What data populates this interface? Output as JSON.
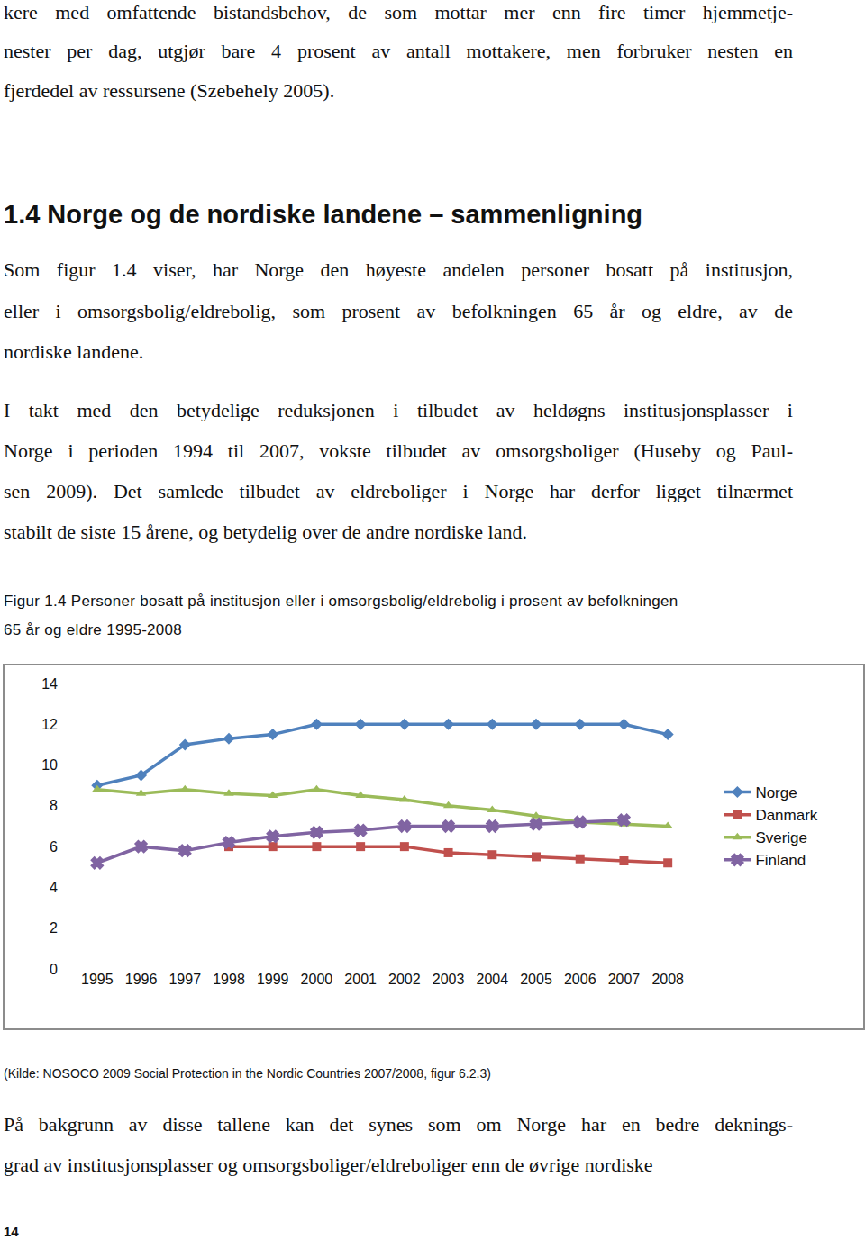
{
  "document": {
    "paragraph_1": [
      "kere med omfattende bistandsbehov, de som mottar mer enn fire timer hjemmetje-",
      "nester per dag, utgjør bare 4 prosent av antall mottakere, men forbruker nesten en",
      "fjerdedel av ressursene (Szebehely 2005)."
    ],
    "heading": "1.4 Norge og de nordiske landene – sammenligning",
    "paragraph_2": [
      "Som figur 1.4 viser, har Norge den høyeste andelen personer bosatt på institusjon,",
      "eller i omsorgsbolig/eldrebolig, som prosent av befolkningen 65 år og eldre, av de",
      "nordiske landene."
    ],
    "paragraph_3": [
      "I takt med den betydelige reduksjonen i tilbudet av heldøgns institusjonsplasser i",
      "Norge i perioden 1994 til 2007, vokste tilbudet av omsorgsboliger (Huseby og Paul-",
      "sen 2009). Det samlede tilbudet av eldreboliger i Norge har derfor ligget tilnærmet",
      "stabilt de siste 15 årene, og betydelig over de andre nordiske land."
    ],
    "figure_caption": [
      "Figur 1.4 Personer bosatt på institusjon eller i omsorgsbolig/eldrebolig i prosent av befolkningen",
      "65 år og eldre 1995-2008"
    ],
    "source": "(Kilde: NOSOCO 2009 Social Protection in the Nordic Countries 2007/2008, figur 6.2.3)",
    "paragraph_4": [
      "På bakgrunn av disse tallene kan det synes som om Norge har en bedre deknings-",
      "grad av institusjonsplasser og omsorgsboliger/eldreboliger enn de øvrige nordiske"
    ],
    "page_number": "14"
  },
  "chart_data": {
    "type": "line",
    "categories": [
      "1995",
      "1996",
      "1997",
      "1998",
      "1999",
      "2000",
      "2001",
      "2002",
      "2003",
      "2004",
      "2005",
      "2006",
      "2007",
      "2008"
    ],
    "series": [
      {
        "name": "Norge",
        "color": "#4f81bd",
        "marker": "diamond",
        "values": [
          9.0,
          9.5,
          11.0,
          11.3,
          11.5,
          12.0,
          12.0,
          12.0,
          12.0,
          12.0,
          12.0,
          12.0,
          12.0,
          11.5
        ]
      },
      {
        "name": "Danmark",
        "color": "#c0504d",
        "marker": "square",
        "values": [
          null,
          null,
          null,
          6.0,
          6.0,
          6.0,
          6.0,
          6.0,
          5.7,
          5.6,
          5.5,
          5.4,
          5.3,
          5.2
        ]
      },
      {
        "name": "Sverige",
        "color": "#9bbb59",
        "marker": "triangle-up",
        "values": [
          8.8,
          8.6,
          8.8,
          8.6,
          8.5,
          8.8,
          8.5,
          8.3,
          8.0,
          7.8,
          7.5,
          7.2,
          7.1,
          7.0
        ]
      },
      {
        "name": "Finland",
        "color": "#8064a2",
        "marker": "x",
        "values": [
          5.2,
          6.0,
          5.8,
          6.2,
          6.5,
          6.7,
          6.8,
          7.0,
          7.0,
          7.0,
          7.1,
          7.2,
          7.3,
          null
        ]
      }
    ],
    "ylim": [
      0,
      14
    ],
    "yticks": [
      0,
      2,
      4,
      6,
      8,
      10,
      12,
      14
    ],
    "grid": false,
    "legend": "right"
  }
}
